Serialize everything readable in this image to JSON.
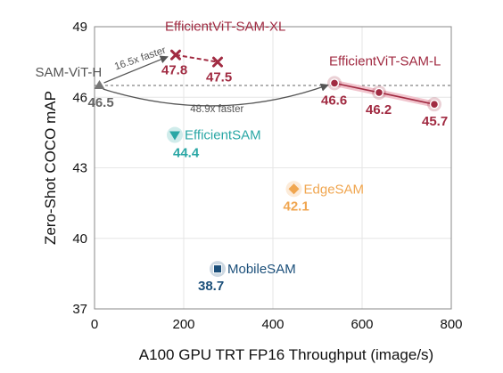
{
  "chart_data": {
    "type": "scatter",
    "xlabel": "A100 GPU TRT FP16 Throughput (image/s)",
    "ylabel": "Zero-Shot COCO mAP",
    "xlim": [
      0,
      800
    ],
    "ylim": [
      37,
      49
    ],
    "x_ticks": [
      "0",
      "200",
      "400",
      "600",
      "800"
    ],
    "y_ticks": [
      "37",
      "40",
      "43",
      "46",
      "49"
    ],
    "grid": true,
    "reference_line": {
      "y": 46.5,
      "style": "dashed"
    },
    "annotations": [
      "16.5x faster",
      "48.9x faster"
    ],
    "series": [
      {
        "name": "SAM-ViT-H",
        "color": "#777777",
        "marker": "triangle-up",
        "points": [
          {
            "x": 11,
            "y": 46.5,
            "label": "46.5"
          }
        ]
      },
      {
        "name": "EfficientViT-SAM-XL",
        "color": "#a12b42",
        "marker": "x",
        "line": "dashed",
        "points": [
          {
            "x": 182,
            "y": 47.8,
            "label": "47.8"
          },
          {
            "x": 276,
            "y": 47.5,
            "label": "47.5"
          }
        ]
      },
      {
        "name": "EfficientViT-SAM-L",
        "color": "#a12b42",
        "marker": "circle",
        "line": "solid",
        "points": [
          {
            "x": 538,
            "y": 46.6,
            "label": "46.6"
          },
          {
            "x": 638,
            "y": 46.2,
            "label": "46.2"
          },
          {
            "x": 762,
            "y": 45.7,
            "label": "45.7"
          }
        ]
      },
      {
        "name": "EfficientSAM",
        "color": "#2aa7a5",
        "marker": "triangle-down",
        "points": [
          {
            "x": 180,
            "y": 44.4,
            "label": "44.4"
          }
        ]
      },
      {
        "name": "EdgeSAM",
        "color": "#f0a650",
        "marker": "diamond",
        "points": [
          {
            "x": 447,
            "y": 42.1,
            "label": "42.1"
          }
        ]
      },
      {
        "name": "MobileSAM",
        "color": "#1b4f7a",
        "marker": "square",
        "points": [
          {
            "x": 276,
            "y": 38.7,
            "label": "38.7"
          }
        ]
      }
    ]
  }
}
